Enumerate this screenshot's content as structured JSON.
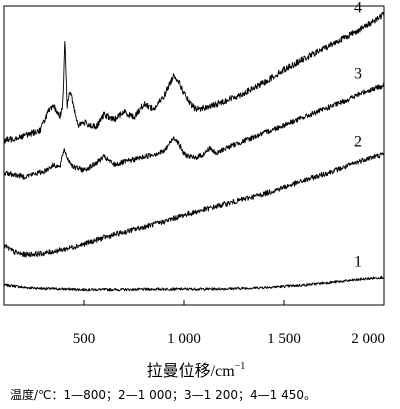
{
  "chart_data": {
    "type": "line",
    "title": "",
    "xlabel": "拉曼位移/cm",
    "xlabel_sup": "−1",
    "ylabel": "",
    "xlim": [
      100,
      2000
    ],
    "ylim": [
      0,
      100
    ],
    "y_axis_labels_shown": false,
    "grid": false,
    "legend": "none",
    "x_ticks": [
      500,
      1000,
      1500,
      2000
    ],
    "x_tick_labels": [
      "500",
      "1 000",
      "1 500",
      "2 000"
    ],
    "series": [
      {
        "name": "1",
        "label_at_x": 1920,
        "x": [
          100,
          150,
          200,
          300,
          400,
          500,
          600,
          700,
          800,
          900,
          1000,
          1100,
          1200,
          1300,
          1400,
          1500,
          1600,
          1700,
          1800,
          1900,
          2000
        ],
        "y": [
          4.5,
          4.2,
          3.6,
          3.2,
          3.0,
          2.8,
          2.8,
          2.8,
          2.9,
          3.0,
          3.0,
          3.0,
          3.1,
          3.3,
          3.6,
          4.0,
          4.5,
          5.3,
          6.0,
          6.8,
          7.5
        ],
        "noise": 0.5
      },
      {
        "name": "2",
        "label_at_x": 1920,
        "x": [
          100,
          150,
          200,
          300,
          400,
          500,
          600,
          700,
          800,
          900,
          1000,
          1100,
          1200,
          1300,
          1400,
          1500,
          1600,
          1700,
          1800,
          1900,
          2000
        ],
        "y": [
          19.5,
          17.0,
          16.0,
          16.5,
          18.0,
          20.0,
          22.5,
          24.5,
          26.5,
          28.5,
          31.0,
          33.0,
          35.0,
          37.0,
          39.0,
          41.5,
          44.0,
          46.5,
          49.0,
          52.0,
          54.0
        ],
        "noise": 1.0
      },
      {
        "name": "3",
        "label_at_x": 1920,
        "x": [
          100,
          200,
          300,
          350,
          380,
          400,
          420,
          450,
          500,
          550,
          600,
          650,
          700,
          800,
          900,
          950,
          970,
          1000,
          1050,
          1100,
          1130,
          1160,
          1200,
          1300,
          1400,
          1500,
          1600,
          1700,
          1800,
          1900,
          2000
        ],
        "y": [
          47.0,
          45.5,
          47.5,
          50.0,
          49.0,
          56.0,
          52.0,
          49.0,
          48.0,
          50.0,
          53.0,
          50.0,
          51.0,
          53.0,
          55.0,
          60.5,
          58.5,
          54.0,
          52.5,
          54.0,
          56.5,
          54.0,
          56.0,
          59.0,
          62.0,
          65.0,
          68.0,
          71.0,
          74.0,
          77.5,
          80.0
        ],
        "noise": 1.0
      },
      {
        "name": "4",
        "label_at_x": 1920,
        "x": [
          100,
          200,
          280,
          320,
          350,
          380,
          395,
          405,
          415,
          430,
          470,
          500,
          560,
          600,
          650,
          700,
          750,
          800,
          850,
          900,
          950,
          970,
          1000,
          1030,
          1060,
          1100,
          1150,
          1200,
          1300,
          1400,
          1500,
          1600,
          1700,
          1800,
          1900,
          2000
        ],
        "y": [
          59.0,
          61.0,
          63.0,
          70.0,
          72.0,
          68.0,
          74.0,
          98.0,
          72.0,
          78.0,
          65.0,
          66.0,
          64.0,
          69.0,
          67.0,
          70.0,
          68.0,
          73.0,
          71.0,
          76.0,
          84.0,
          82.0,
          77.0,
          73.0,
          71.0,
          71.5,
          72.5,
          74.0,
          77.0,
          81.0,
          86.0,
          90.0,
          94.0,
          98.0,
          102.0,
          107.0
        ],
        "noise": 1.2
      }
    ],
    "caption": "温度/℃：1—800；2—1 000；3—1 200；4—1 450。"
  }
}
